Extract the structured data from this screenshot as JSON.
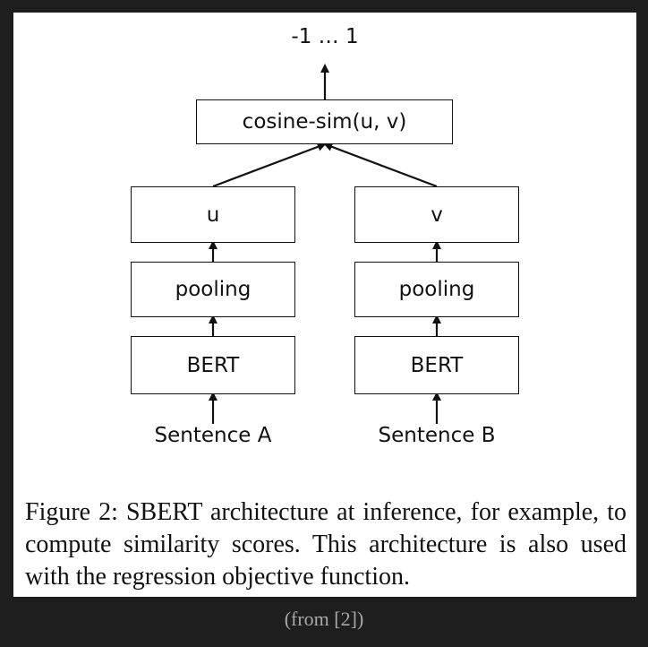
{
  "diagram": {
    "output_label": "-1 … 1",
    "cosine_box": "cosine-sim(u, v)",
    "left": {
      "embedding": "u",
      "pooling": "pooling",
      "encoder": "BERT",
      "input": "Sentence A"
    },
    "right": {
      "embedding": "v",
      "pooling": "pooling",
      "encoder": "BERT",
      "input": "Sentence B"
    }
  },
  "caption": "Figure 2: SBERT architecture at inference, for example, to compute similarity scores. This architecture is also used with the regression objective function.",
  "source_note": "(from [2])"
}
